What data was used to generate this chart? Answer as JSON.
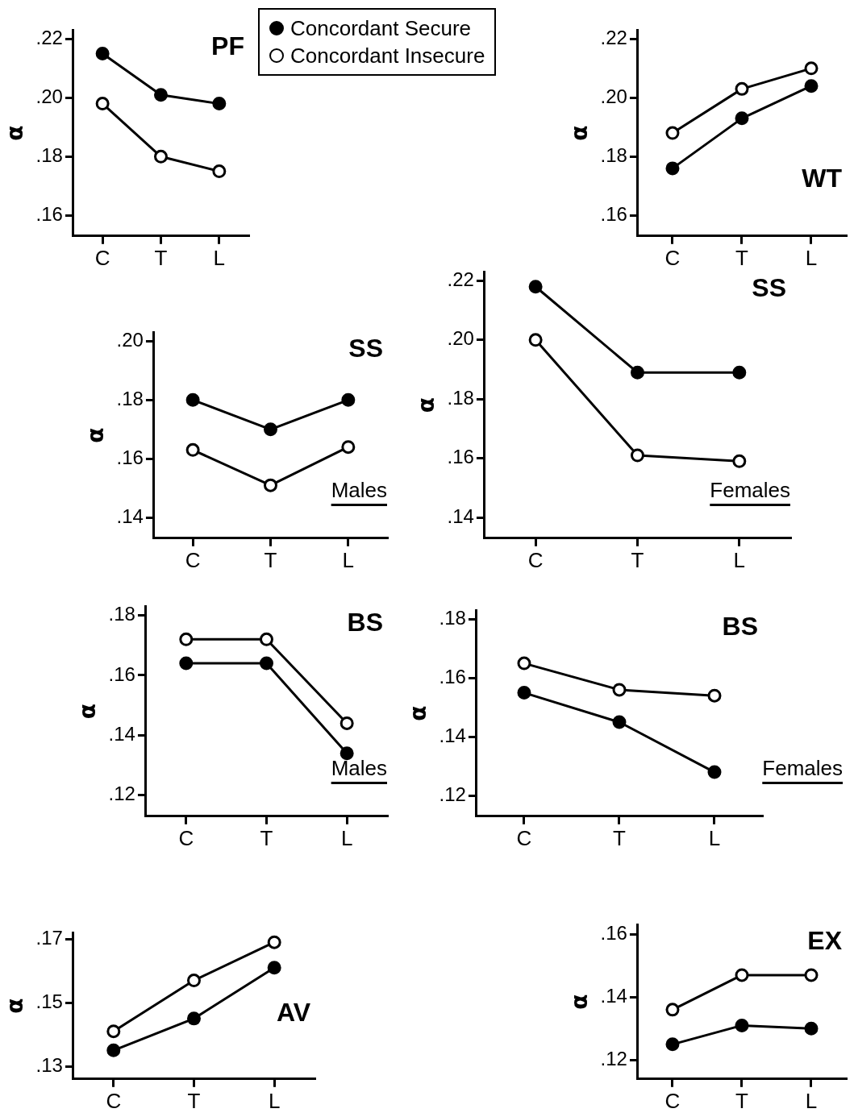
{
  "chart_data": [
    {
      "type": "line",
      "title": "PF",
      "ylabel": "α",
      "categories": [
        "C",
        "T",
        "L"
      ],
      "marker": "circle",
      "legend": "top right",
      "grid": false,
      "series": [
        {
          "name": "Concordant Secure",
          "color": "#000000",
          "values": [
            0.215,
            0.201,
            0.198
          ]
        },
        {
          "name": "Concordant Insecure",
          "color": "#000000",
          "values": [
            0.198,
            0.18,
            0.175
          ]
        }
      ],
      "ylim": [
        0.153,
        0.223
      ],
      "yticks": [
        {
          "value": 0.16,
          "label": ".16"
        },
        {
          "value": 0.18,
          "label": ".18"
        },
        {
          "value": 0.2,
          "label": ".20"
        },
        {
          "value": 0.22,
          "label": ".22"
        }
      ]
    },
    {
      "type": "line",
      "title": "WT",
      "ylabel": "α",
      "categories": [
        "C",
        "T",
        "L"
      ],
      "marker": "circle",
      "grid": false,
      "series": [
        {
          "color": "#000000",
          "values": [
            0.176,
            0.193,
            0.204
          ]
        },
        {
          "color": "#000000",
          "values": [
            0.188,
            0.203,
            0.21
          ]
        }
      ],
      "ylim": [
        0.153,
        0.223
      ],
      "yticks": [
        {
          "value": 0.16,
          "label": ".16"
        },
        {
          "value": 0.18,
          "label": ".18"
        },
        {
          "value": 0.2,
          "label": ".20"
        },
        {
          "value": 0.22,
          "label": ".22"
        }
      ]
    },
    {
      "type": "line",
      "title": "SS",
      "ylabel": "α",
      "categories": [
        "C",
        "T",
        "L"
      ],
      "marker": "circle",
      "grid": false,
      "annotations": [
        "Males"
      ],
      "series": [
        {
          "color": "#000000",
          "values": [
            0.18,
            0.17,
            0.18
          ]
        },
        {
          "color": "#000000",
          "values": [
            0.163,
            0.151,
            0.164
          ]
        }
      ],
      "ylim": [
        0.133,
        0.203
      ],
      "yticks": [
        {
          "value": 0.14,
          "label": ".14"
        },
        {
          "value": 0.16,
          "label": ".16"
        },
        {
          "value": 0.18,
          "label": ".18"
        },
        {
          "value": 0.2,
          "label": ".20"
        }
      ]
    },
    {
      "type": "line",
      "title": "SS",
      "ylabel": "α",
      "categories": [
        "C",
        "T",
        "L"
      ],
      "marker": "circle",
      "grid": false,
      "annotations": [
        "Females"
      ],
      "series": [
        {
          "color": "#000000",
          "values": [
            0.218,
            0.189,
            0.189
          ]
        },
        {
          "color": "#000000",
          "values": [
            0.2,
            0.161,
            0.159
          ]
        }
      ],
      "ylim": [
        0.133,
        0.223
      ],
      "yticks": [
        {
          "value": 0.14,
          "label": ".14"
        },
        {
          "value": 0.16,
          "label": ".16"
        },
        {
          "value": 0.18,
          "label": ".18"
        },
        {
          "value": 0.2,
          "label": ".20"
        },
        {
          "value": 0.22,
          "label": ".22"
        }
      ]
    },
    {
      "type": "line",
      "title": "BS",
      "ylabel": "α",
      "categories": [
        "C",
        "T",
        "L"
      ],
      "marker": "circle",
      "grid": false,
      "annotations": [
        "Males"
      ],
      "series": [
        {
          "color": "#000000",
          "values": [
            0.164,
            0.164,
            0.134
          ]
        },
        {
          "color": "#000000",
          "values": [
            0.172,
            0.172,
            0.144
          ]
        }
      ],
      "ylim": [
        0.113,
        0.183
      ],
      "yticks": [
        {
          "value": 0.12,
          "label": ".12"
        },
        {
          "value": 0.14,
          "label": ".14"
        },
        {
          "value": 0.16,
          "label": ".16"
        },
        {
          "value": 0.18,
          "label": ".18"
        }
      ]
    },
    {
      "type": "line",
      "title": "BS",
      "ylabel": "α",
      "categories": [
        "C",
        "T",
        "L"
      ],
      "marker": "circle",
      "grid": false,
      "annotations": [
        "Females"
      ],
      "series": [
        {
          "color": "#000000",
          "values": [
            0.155,
            0.145,
            0.128
          ]
        },
        {
          "color": "#000000",
          "values": [
            0.165,
            0.156,
            0.154
          ]
        }
      ],
      "ylim": [
        0.113,
        0.183
      ],
      "yticks": [
        {
          "value": 0.12,
          "label": ".12"
        },
        {
          "value": 0.14,
          "label": ".14"
        },
        {
          "value": 0.16,
          "label": ".16"
        },
        {
          "value": 0.18,
          "label": ".18"
        }
      ]
    },
    {
      "type": "line",
      "title": "AV",
      "ylabel": "α",
      "categories": [
        "C",
        "T",
        "L"
      ],
      "marker": "circle",
      "grid": false,
      "series": [
        {
          "color": "#000000",
          "values": [
            0.135,
            0.145,
            0.161
          ]
        },
        {
          "color": "#000000",
          "values": [
            0.141,
            0.157,
            0.169
          ]
        }
      ],
      "ylim": [
        0.126,
        0.172
      ],
      "yticks": [
        {
          "value": 0.13,
          "label": ".13"
        },
        {
          "value": 0.15,
          "label": ".15"
        },
        {
          "value": 0.17,
          "label": ".17"
        }
      ]
    },
    {
      "type": "line",
      "title": "EX",
      "ylabel": "α",
      "categories": [
        "C",
        "T",
        "L"
      ],
      "marker": "circle",
      "grid": false,
      "series": [
        {
          "color": "#000000",
          "values": [
            0.125,
            0.131,
            0.13
          ]
        },
        {
          "color": "#000000",
          "values": [
            0.136,
            0.147,
            0.147
          ]
        }
      ],
      "ylim": [
        0.114,
        0.163
      ],
      "yticks": [
        {
          "value": 0.12,
          "label": ".12"
        },
        {
          "value": 0.14,
          "label": ".14"
        },
        {
          "value": 0.16,
          "label": ".16"
        }
      ]
    }
  ]
}
